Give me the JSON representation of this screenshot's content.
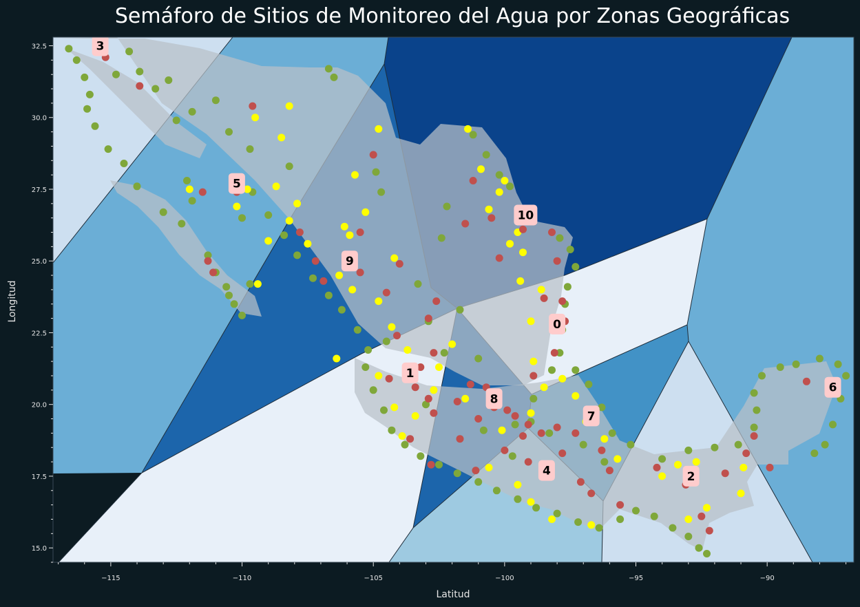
{
  "title": "Semáforo de Sitios de Monitoreo del Agua por Zonas Geográficas",
  "xlabel": "Latitud",
  "ylabel": "Longitud",
  "xlim": [
    -117.2,
    -86.7
  ],
  "ylim": [
    14.5,
    32.8
  ],
  "x_ticks": [
    -115,
    -110,
    -105,
    -100,
    -95,
    -90
  ],
  "y_ticks": [
    15.0,
    17.5,
    20.0,
    22.5,
    25.0,
    27.5,
    30.0,
    32.5
  ],
  "x_tick_labels": [
    "−115",
    "−110",
    "−105",
    "−100",
    "−95",
    "−90"
  ],
  "y_tick_labels": [
    "15.0",
    "17.5",
    "20.0",
    "22.5",
    "25.0",
    "27.5",
    "30.0",
    "32.5"
  ],
  "colors": {
    "background": "#0c1b22",
    "country": "#b9c0c8",
    "green": "#7fa73a",
    "yellow": "#ffff00",
    "red": "#c0504d",
    "label_box": "#ffcccc"
  },
  "chart_data": {
    "type": "scatter",
    "title": "Semáforo de Sitios de Monitoreo del Agua por Zonas Geográficas",
    "xlabel": "Latitud",
    "ylabel": "Longitud",
    "xlim": [
      -117.2,
      -86.7
    ],
    "ylim": [
      14.5,
      32.8
    ],
    "zones": [
      {
        "label": "0",
        "center": [
          -98.0,
          22.8
        ],
        "fill": "#e8f0f9"
      },
      {
        "label": "1",
        "center": [
          -103.6,
          21.1
        ],
        "fill": "#e8f0f9"
      },
      {
        "label": "2",
        "center": [
          -92.9,
          17.5
        ],
        "fill": "#cddff0"
      },
      {
        "label": "3",
        "center": [
          -115.4,
          32.5
        ],
        "fill": "#cddff0"
      },
      {
        "label": "4",
        "center": [
          -98.4,
          17.7
        ],
        "fill": "#9ecae1"
      },
      {
        "label": "5",
        "center": [
          -110.2,
          27.7
        ],
        "fill": "#6baed6"
      },
      {
        "label": "6",
        "center": [
          -87.5,
          20.6
        ],
        "fill": "#6baed6"
      },
      {
        "label": "7",
        "center": [
          -96.7,
          19.6
        ],
        "fill": "#4292c6"
      },
      {
        "label": "8",
        "center": [
          -100.4,
          20.2
        ],
        "fill": "#1c65ab"
      },
      {
        "label": "9",
        "center": [
          -105.9,
          25.0
        ],
        "fill": "#1c65ab"
      },
      {
        "label": "10",
        "center": [
          -99.2,
          26.6
        ],
        "fill": "#0a438b"
      }
    ],
    "series": [
      {
        "color": "#7fa73a",
        "points": [
          [
            -116.6,
            32.4
          ],
          [
            -116.3,
            32.0
          ],
          [
            -116.0,
            31.4
          ],
          [
            -115.8,
            30.8
          ],
          [
            -115.9,
            30.3
          ],
          [
            -115.6,
            29.7
          ],
          [
            -114.3,
            32.3
          ],
          [
            -113.9,
            31.6
          ],
          [
            -112.8,
            31.3
          ],
          [
            -113.3,
            31.0
          ],
          [
            -114.8,
            31.5
          ],
          [
            -112.1,
            27.8
          ],
          [
            -111.9,
            27.1
          ],
          [
            -111.3,
            25.2
          ],
          [
            -111.0,
            24.6
          ],
          [
            -110.6,
            24.1
          ],
          [
            -110.3,
            23.5
          ],
          [
            -110.0,
            23.1
          ],
          [
            -110.5,
            23.8
          ],
          [
            -112.3,
            26.3
          ],
          [
            -113.0,
            26.7
          ],
          [
            -114.0,
            27.6
          ],
          [
            -114.5,
            28.4
          ],
          [
            -115.1,
            28.9
          ],
          [
            -109.7,
            24.2
          ],
          [
            -110.0,
            26.5
          ],
          [
            -109.6,
            27.4
          ],
          [
            -109.0,
            26.6
          ],
          [
            -108.4,
            25.9
          ],
          [
            -107.9,
            25.2
          ],
          [
            -107.3,
            24.4
          ],
          [
            -106.7,
            23.8
          ],
          [
            -106.2,
            23.3
          ],
          [
            -105.6,
            22.6
          ],
          [
            -105.2,
            21.9
          ],
          [
            -105.3,
            21.3
          ],
          [
            -105.0,
            20.5
          ],
          [
            -104.6,
            19.8
          ],
          [
            -104.3,
            19.1
          ],
          [
            -103.8,
            18.6
          ],
          [
            -103.2,
            18.2
          ],
          [
            -102.5,
            17.9
          ],
          [
            -101.8,
            17.6
          ],
          [
            -101.0,
            17.3
          ],
          [
            -100.3,
            17.0
          ],
          [
            -99.5,
            16.7
          ],
          [
            -98.8,
            16.4
          ],
          [
            -98.0,
            16.2
          ],
          [
            -97.2,
            15.9
          ],
          [
            -96.4,
            15.7
          ],
          [
            -95.6,
            16.0
          ],
          [
            -95.0,
            16.3
          ],
          [
            -94.3,
            16.1
          ],
          [
            -93.6,
            15.7
          ],
          [
            -93.0,
            15.4
          ],
          [
            -92.6,
            15.0
          ],
          [
            -92.3,
            14.8
          ],
          [
            -94.0,
            18.1
          ],
          [
            -93.0,
            18.4
          ],
          [
            -92.0,
            18.5
          ],
          [
            -91.1,
            18.6
          ],
          [
            -90.5,
            19.2
          ],
          [
            -90.4,
            19.8
          ],
          [
            -90.5,
            20.4
          ],
          [
            -90.2,
            21.0
          ],
          [
            -89.5,
            21.3
          ],
          [
            -88.9,
            21.4
          ],
          [
            -88.0,
            21.6
          ],
          [
            -87.3,
            21.4
          ],
          [
            -87.0,
            21.0
          ],
          [
            -87.2,
            20.2
          ],
          [
            -87.5,
            19.3
          ],
          [
            -87.8,
            18.6
          ],
          [
            -88.2,
            18.3
          ],
          [
            -97.9,
            25.8
          ],
          [
            -97.5,
            25.4
          ],
          [
            -97.3,
            24.8
          ],
          [
            -97.6,
            24.1
          ],
          [
            -97.7,
            23.5
          ],
          [
            -97.8,
            22.6
          ],
          [
            -97.9,
            21.8
          ],
          [
            -97.3,
            21.2
          ],
          [
            -96.8,
            20.7
          ],
          [
            -96.3,
            19.9
          ],
          [
            -95.9,
            19.0
          ],
          [
            -95.2,
            18.6
          ],
          [
            -101.2,
            29.4
          ],
          [
            -100.7,
            28.7
          ],
          [
            -100.2,
            28.0
          ],
          [
            -99.8,
            27.6
          ],
          [
            -102.2,
            26.9
          ],
          [
            -104.9,
            28.1
          ],
          [
            -104.7,
            27.4
          ],
          [
            -108.2,
            28.3
          ],
          [
            -109.7,
            28.9
          ],
          [
            -110.5,
            29.5
          ],
          [
            -111.0,
            30.6
          ],
          [
            -111.9,
            30.2
          ],
          [
            -112.5,
            29.9
          ],
          [
            -106.7,
            31.7
          ],
          [
            -106.5,
            31.4
          ],
          [
            -102.4,
            25.8
          ],
          [
            -103.3,
            24.2
          ],
          [
            -101.7,
            23.3
          ],
          [
            -101.0,
            21.6
          ],
          [
            -102.3,
            21.8
          ],
          [
            -103.0,
            20.0
          ],
          [
            -99.0,
            19.4
          ],
          [
            -99.6,
            19.3
          ],
          [
            -98.3,
            19.0
          ],
          [
            -97.0,
            18.6
          ],
          [
            -96.2,
            18.0
          ],
          [
            -99.7,
            18.2
          ],
          [
            -100.8,
            19.1
          ],
          [
            -98.9,
            20.2
          ],
          [
            -98.2,
            21.2
          ],
          [
            -104.5,
            22.2
          ],
          [
            -102.9,
            22.9
          ]
        ]
      },
      {
        "color": "#ffff00",
        "points": [
          [
            -109.5,
            30.0
          ],
          [
            -108.5,
            29.3
          ],
          [
            -108.2,
            30.4
          ],
          [
            -107.9,
            27.0
          ],
          [
            -108.2,
            26.4
          ],
          [
            -107.5,
            25.6
          ],
          [
            -108.7,
            27.6
          ],
          [
            -109.8,
            27.5
          ],
          [
            -109.0,
            25.7
          ],
          [
            -106.3,
            24.5
          ],
          [
            -105.8,
            24.0
          ],
          [
            -104.8,
            23.6
          ],
          [
            -104.3,
            22.7
          ],
          [
            -103.7,
            21.9
          ],
          [
            -104.8,
            21.0
          ],
          [
            -104.2,
            19.9
          ],
          [
            -103.4,
            19.6
          ],
          [
            -103.9,
            18.9
          ],
          [
            -102.7,
            20.5
          ],
          [
            -104.8,
            29.6
          ],
          [
            -105.7,
            28.0
          ],
          [
            -105.3,
            26.7
          ],
          [
            -104.2,
            25.1
          ],
          [
            -105.9,
            25.9
          ],
          [
            -101.4,
            29.6
          ],
          [
            -100.9,
            28.2
          ],
          [
            -100.2,
            27.4
          ],
          [
            -100.0,
            27.8
          ],
          [
            -99.5,
            26.0
          ],
          [
            -99.8,
            25.6
          ],
          [
            -100.6,
            26.8
          ],
          [
            -99.3,
            25.3
          ],
          [
            -99.4,
            24.3
          ],
          [
            -98.6,
            24.0
          ],
          [
            -99.0,
            22.9
          ],
          [
            -98.9,
            21.5
          ],
          [
            -98.5,
            20.6
          ],
          [
            -97.8,
            20.9
          ],
          [
            -97.3,
            20.3
          ],
          [
            -96.9,
            19.4
          ],
          [
            -96.2,
            18.8
          ],
          [
            -95.7,
            18.1
          ],
          [
            -99.5,
            17.2
          ],
          [
            -100.6,
            17.8
          ],
          [
            -99.0,
            16.6
          ],
          [
            -98.2,
            16.0
          ],
          [
            -96.7,
            15.8
          ],
          [
            -94.0,
            17.5
          ],
          [
            -93.4,
            17.9
          ],
          [
            -92.7,
            18.0
          ],
          [
            -93.0,
            16.0
          ],
          [
            -92.3,
            16.4
          ],
          [
            -91.0,
            16.9
          ],
          [
            -90.9,
            17.8
          ],
          [
            -102.0,
            22.1
          ],
          [
            -101.5,
            20.2
          ],
          [
            -100.1,
            19.1
          ],
          [
            -99.0,
            19.7
          ],
          [
            -109.4,
            24.2
          ],
          [
            -110.2,
            26.9
          ],
          [
            -112.0,
            27.5
          ],
          [
            -106.1,
            26.2
          ],
          [
            -106.4,
            21.6
          ],
          [
            -102.5,
            21.3
          ]
        ]
      },
      {
        "color": "#c0504d",
        "points": [
          [
            -115.2,
            32.1
          ],
          [
            -113.9,
            31.1
          ],
          [
            -111.5,
            27.4
          ],
          [
            -109.6,
            30.4
          ],
          [
            -110.2,
            27.4
          ],
          [
            -111.3,
            25.0
          ],
          [
            -111.1,
            24.6
          ],
          [
            -107.8,
            26.0
          ],
          [
            -107.2,
            25.0
          ],
          [
            -106.9,
            24.3
          ],
          [
            -105.5,
            24.6
          ],
          [
            -104.0,
            24.9
          ],
          [
            -104.5,
            23.9
          ],
          [
            -104.1,
            22.4
          ],
          [
            -103.2,
            21.3
          ],
          [
            -102.7,
            21.8
          ],
          [
            -103.4,
            20.6
          ],
          [
            -102.9,
            20.2
          ],
          [
            -104.4,
            20.9
          ],
          [
            -103.6,
            18.8
          ],
          [
            -102.7,
            19.7
          ],
          [
            -101.8,
            20.1
          ],
          [
            -101.3,
            20.7
          ],
          [
            -101.0,
            19.5
          ],
          [
            -100.4,
            19.9
          ],
          [
            -99.6,
            19.6
          ],
          [
            -99.1,
            19.3
          ],
          [
            -98.6,
            19.0
          ],
          [
            -98.0,
            19.2
          ],
          [
            -99.3,
            18.9
          ],
          [
            -100.0,
            18.4
          ],
          [
            -101.7,
            18.8
          ],
          [
            -102.8,
            17.9
          ],
          [
            -101.1,
            17.7
          ],
          [
            -99.1,
            18.0
          ],
          [
            -97.8,
            18.3
          ],
          [
            -97.1,
            17.3
          ],
          [
            -96.7,
            16.9
          ],
          [
            -96.0,
            17.7
          ],
          [
            -95.6,
            16.5
          ],
          [
            -94.2,
            17.8
          ],
          [
            -93.1,
            17.2
          ],
          [
            -92.5,
            16.1
          ],
          [
            -92.2,
            15.6
          ],
          [
            -91.6,
            17.6
          ],
          [
            -90.8,
            18.3
          ],
          [
            -90.5,
            18.9
          ],
          [
            -89.9,
            17.8
          ],
          [
            -88.5,
            20.8
          ],
          [
            -99.3,
            26.1
          ],
          [
            -98.2,
            26.0
          ],
          [
            -98.0,
            25.0
          ],
          [
            -97.8,
            23.6
          ],
          [
            -98.5,
            23.7
          ],
          [
            -101.5,
            26.3
          ],
          [
            -102.9,
            23.0
          ],
          [
            -102.6,
            23.6
          ],
          [
            -105.0,
            28.7
          ],
          [
            -105.5,
            26.0
          ],
          [
            -101.2,
            27.8
          ],
          [
            -100.5,
            26.5
          ],
          [
            -100.2,
            25.1
          ],
          [
            -98.1,
            21.8
          ],
          [
            -97.7,
            22.9
          ],
          [
            -99.9,
            19.8
          ],
          [
            -100.7,
            20.6
          ],
          [
            -98.9,
            21.0
          ],
          [
            -97.3,
            19.0
          ],
          [
            -96.3,
            18.4
          ]
        ]
      }
    ]
  }
}
